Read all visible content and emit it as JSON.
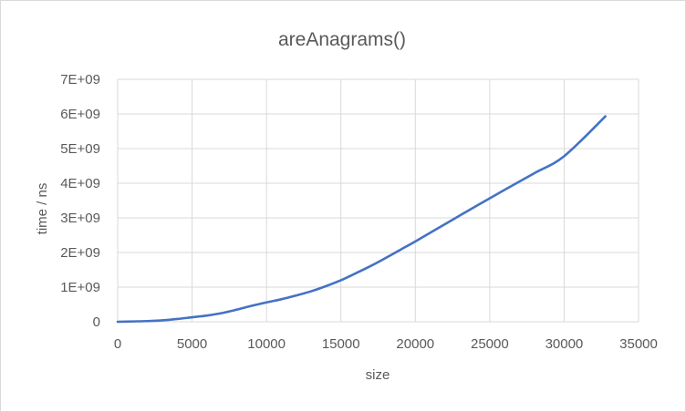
{
  "chart_data": {
    "type": "line",
    "title": "areAnagrams()",
    "xlabel": "size",
    "ylabel": "time / ns",
    "xlim": [
      0,
      35000
    ],
    "ylim": [
      0,
      7000000000
    ],
    "x_ticks": [
      0,
      5000,
      10000,
      15000,
      20000,
      25000,
      30000,
      35000
    ],
    "x_tick_labels": [
      "0",
      "5000",
      "10000",
      "15000",
      "20000",
      "25000",
      "30000",
      "35000"
    ],
    "y_ticks": [
      0,
      1000000000,
      2000000000,
      3000000000,
      4000000000,
      5000000000,
      6000000000,
      7000000000
    ],
    "y_tick_labels": [
      "0",
      "1E+09",
      "2E+09",
      "3E+09",
      "4E+09",
      "5E+09",
      "6E+09",
      "7E+09"
    ],
    "grid": true,
    "legend": "none",
    "series": [
      {
        "color": "#4472c4",
        "x": [
          0,
          1000,
          2000,
          3000,
          4000,
          5000,
          6000,
          7000,
          8000,
          9000,
          10000,
          11000,
          12000,
          13000,
          14000,
          15000,
          16000,
          17000,
          18000,
          19000,
          20000,
          22000,
          24000,
          26000,
          28000,
          30000,
          32768
        ],
        "y": [
          0,
          10000000,
          20000000,
          40000000,
          80000000,
          130000000,
          180000000,
          250000000,
          350000000,
          460000000,
          560000000,
          650000000,
          760000000,
          880000000,
          1030000000,
          1200000000,
          1400000000,
          1610000000,
          1840000000,
          2080000000,
          2320000000,
          2820000000,
          3320000000,
          3810000000,
          4290000000,
          4780000000,
          5930000000
        ]
      }
    ]
  }
}
